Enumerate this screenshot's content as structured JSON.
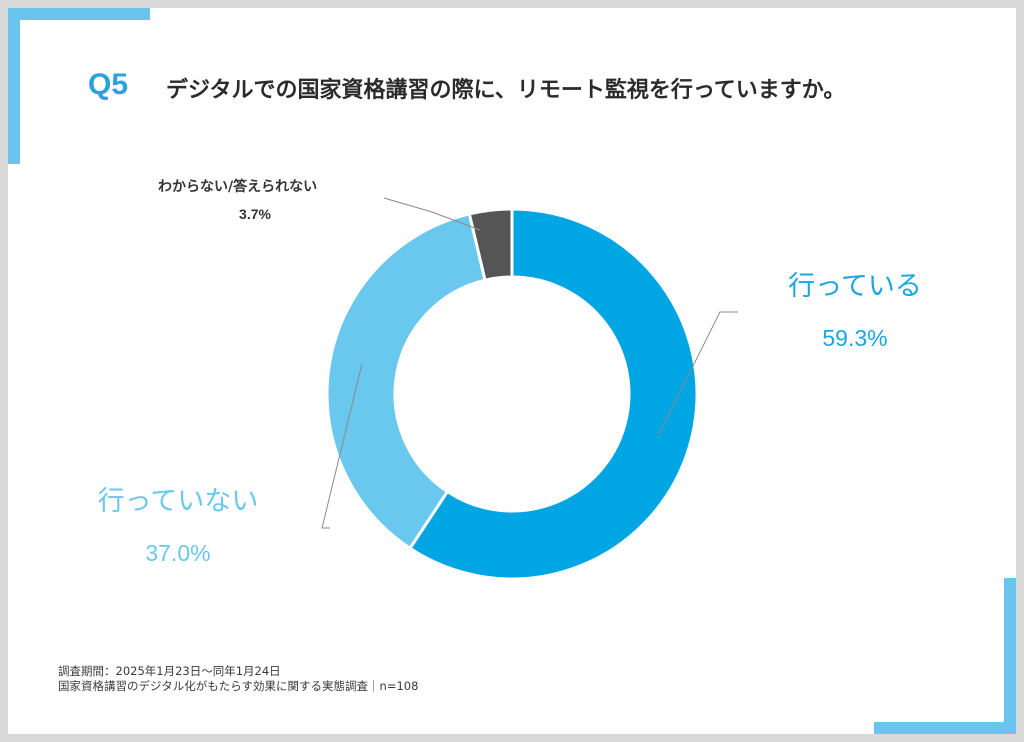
{
  "header": {
    "question_label": "Q5",
    "question_text": "デジタルでの国家資格講習の際に、リモート監視を行っていますか。"
  },
  "chart_data": {
    "type": "pie",
    "variant": "donut",
    "categories": [
      "行っている",
      "行っていない",
      "わからない/答えられない"
    ],
    "values": [
      59.3,
      37.0,
      3.7
    ],
    "value_labels": [
      "59.3%",
      "37.0%",
      "3.7%"
    ],
    "colors": [
      "#00a5e3",
      "#6ac8ef",
      "#555555"
    ]
  },
  "footer": {
    "period": "調査期間：2025年1月23日〜同年1月24日",
    "survey": "国家資格講習のデジタル化がもたらす効果に関する実態調査｜n=108"
  }
}
